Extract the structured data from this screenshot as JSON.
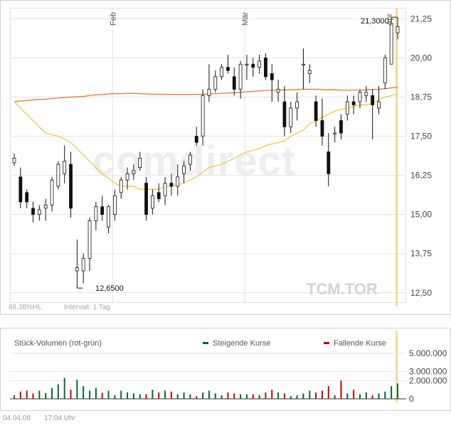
{
  "chart_data": [
    {
      "type": "candlestick",
      "symbol": "TCM.TOR",
      "watermark": "comdirect",
      "x_labels": [
        "Feb",
        "Mär",
        "Apr"
      ],
      "y_ticks": [
        "21,25",
        "20,00",
        "18,75",
        "17,50",
        "16,25",
        "15,00",
        "13,75",
        "12,50"
      ],
      "ylim": [
        12.2,
        21.6
      ],
      "annotations": {
        "high": "21,3000",
        "low": "12,6500"
      },
      "info_left": "68,38%HL",
      "info_interval": "Intervall: 1 Tag",
      "colors": {
        "candle": "#111111",
        "ma_long": "#e36f1e",
        "ma_short": "#f2c22e",
        "today_marker": "#f7d27a",
        "grid": "#e3e3e3"
      },
      "ohlc": [
        [
          16.65,
          16.95,
          16.55,
          16.8
        ],
        [
          16.2,
          16.5,
          15.2,
          15.4
        ],
        [
          15.7,
          15.8,
          15.2,
          15.4
        ],
        [
          15.2,
          15.4,
          14.75,
          15.0
        ],
        [
          15.0,
          15.3,
          14.8,
          15.15
        ],
        [
          15.2,
          15.5,
          14.8,
          15.3
        ],
        [
          15.3,
          16.2,
          15.1,
          16.1
        ],
        [
          15.9,
          16.7,
          15.8,
          16.6
        ],
        [
          16.3,
          17.2,
          16.0,
          16.7
        ],
        [
          16.6,
          17.0,
          14.9,
          15.2
        ],
        [
          13.2,
          14.2,
          12.65,
          13.3
        ],
        [
          13.2,
          13.75,
          12.8,
          13.6
        ],
        [
          13.6,
          14.9,
          13.2,
          14.8
        ],
        [
          14.8,
          15.4,
          14.5,
          15.25
        ],
        [
          15.25,
          15.6,
          14.8,
          15.0
        ],
        [
          14.6,
          15.3,
          14.4,
          15.25
        ],
        [
          15.0,
          15.8,
          14.8,
          15.6
        ],
        [
          15.7,
          16.2,
          15.5,
          16.1
        ],
        [
          16.1,
          16.5,
          15.8,
          16.3
        ],
        [
          16.3,
          16.6,
          16.1,
          16.4
        ],
        [
          16.5,
          17.0,
          16.4,
          16.8
        ],
        [
          16.0,
          16.2,
          14.8,
          15.0
        ],
        [
          15.2,
          15.8,
          15.0,
          15.6
        ],
        [
          15.7,
          16.0,
          15.4,
          15.5
        ],
        [
          15.6,
          16.2,
          15.3,
          16.0
        ],
        [
          16.0,
          16.3,
          15.6,
          15.9
        ],
        [
          15.9,
          16.6,
          15.6,
          16.2
        ],
        [
          16.3,
          16.7,
          16.0,
          16.55
        ],
        [
          16.6,
          17.0,
          16.4,
          16.9
        ],
        [
          17.5,
          17.8,
          17.2,
          17.3
        ],
        [
          17.5,
          19.0,
          17.2,
          18.8
        ],
        [
          18.8,
          19.8,
          18.6,
          19.0
        ],
        [
          19.0,
          19.6,
          18.9,
          19.4
        ],
        [
          19.4,
          19.8,
          19.3,
          19.7
        ],
        [
          19.7,
          20.1,
          19.5,
          19.6
        ],
        [
          19.4,
          19.7,
          18.8,
          19.0
        ],
        [
          19.0,
          19.9,
          18.7,
          19.8
        ],
        [
          19.8,
          20.1,
          19.3,
          19.8
        ],
        [
          19.8,
          20.0,
          19.4,
          19.7
        ],
        [
          19.7,
          20.1,
          19.5,
          19.9
        ],
        [
          20.0,
          20.15,
          19.3,
          19.4
        ],
        [
          19.5,
          19.8,
          18.6,
          19.3
        ],
        [
          18.9,
          19.3,
          18.6,
          19.0
        ],
        [
          18.6,
          19.1,
          17.5,
          17.8
        ],
        [
          17.8,
          18.6,
          17.6,
          18.4
        ],
        [
          18.4,
          18.9,
          18.0,
          18.6
        ],
        [
          19.8,
          20.3,
          19.0,
          19.8
        ],
        [
          19.5,
          19.8,
          19.2,
          19.6
        ],
        [
          18.6,
          18.8,
          17.8,
          18.0
        ],
        [
          18.0,
          18.7,
          17.2,
          17.5
        ],
        [
          17.0,
          17.6,
          15.9,
          16.3
        ],
        [
          17.6,
          17.8,
          17.3,
          17.6
        ],
        [
          18.0,
          18.2,
          17.4,
          17.6
        ],
        [
          18.2,
          18.8,
          18.0,
          18.6
        ],
        [
          18.6,
          18.8,
          18.2,
          18.5
        ],
        [
          18.6,
          19.0,
          18.4,
          18.9
        ],
        [
          18.8,
          19.1,
          18.6,
          18.9
        ],
        [
          18.8,
          19.0,
          17.4,
          18.5
        ],
        [
          18.4,
          19.1,
          18.2,
          18.6
        ],
        [
          19.2,
          20.1,
          19.0,
          20.0
        ],
        [
          19.8,
          21.3,
          19.8,
          21.1
        ],
        [
          20.8,
          21.3,
          20.6,
          21.0
        ]
      ],
      "ma_short": [
        18.6,
        18.4,
        18.2,
        18.0,
        17.8,
        17.6,
        17.55,
        17.5,
        17.4,
        17.3,
        17.1,
        16.9,
        16.7,
        16.5,
        16.3,
        16.15,
        16.0,
        15.9,
        15.9,
        15.9,
        15.8,
        15.8,
        15.8,
        15.8,
        15.9,
        15.9,
        15.95,
        16.0,
        16.1,
        16.2,
        16.35,
        16.5,
        16.55,
        16.6,
        16.7,
        16.8,
        16.9,
        17.0,
        17.05,
        17.1,
        17.2,
        17.25,
        17.3,
        17.35,
        17.5,
        17.6,
        17.7,
        17.9,
        18.0,
        18.1,
        18.2,
        18.3,
        18.35,
        18.4,
        18.45,
        18.5,
        18.5,
        18.55,
        18.65,
        18.75,
        18.8,
        18.85
      ],
      "ma_long": [
        18.6,
        18.62,
        18.64,
        18.66,
        18.67,
        18.68,
        18.7,
        18.72,
        18.74,
        18.75,
        18.76,
        18.77,
        18.8,
        18.82,
        18.83,
        18.85,
        18.86,
        18.86,
        18.87,
        18.87,
        18.86,
        18.85,
        18.84,
        18.84,
        18.84,
        18.84,
        18.83,
        18.83,
        18.83,
        18.84,
        18.84,
        18.85,
        18.86,
        18.87,
        18.88,
        18.89,
        18.9,
        18.92,
        18.93,
        18.95,
        18.96,
        18.97,
        18.97,
        18.98,
        18.98,
        18.99,
        19.0,
        19.0,
        19.0,
        18.99,
        18.98,
        18.98,
        18.97,
        18.97,
        18.97,
        18.97,
        18.98,
        18.99,
        19.0,
        19.02,
        19.04,
        19.06
      ]
    },
    {
      "type": "bar",
      "title": "Stück-Volumen (rot-grün)",
      "legend": {
        "up": "Steigende Kurse",
        "down": "Fallende Kurse"
      },
      "y_ticks": [
        "5.000.000",
        "3.000.000",
        "2.000.000",
        "0"
      ],
      "ylim": [
        0,
        5000000
      ],
      "colors": {
        "up": "#006633",
        "down": "#cc0000",
        "baseline": "#333333"
      },
      "volumes": [
        400000,
        800000,
        900000,
        600000,
        900000,
        650000,
        1200000,
        1600000,
        2300000,
        1000000,
        2100000,
        1400000,
        900000,
        1200000,
        650000,
        900000,
        400000,
        900000,
        700000,
        600000,
        500000,
        500000,
        1000000,
        700000,
        900000,
        800000,
        500000,
        700000,
        500000,
        300000,
        700000,
        900000,
        600000,
        400000,
        700000,
        600000,
        500000,
        500000,
        500000,
        400000,
        700000,
        1000000,
        700000,
        600000,
        300000,
        400000,
        600000,
        900000,
        700000,
        900000,
        1400000,
        400000,
        2000000,
        600000,
        1000000,
        500000,
        700000,
        400000,
        600000,
        800000,
        1400000,
        1700000
      ]
    }
  ],
  "footer": {
    "date": "04.04.08",
    "time": "17:04 Uhr"
  }
}
